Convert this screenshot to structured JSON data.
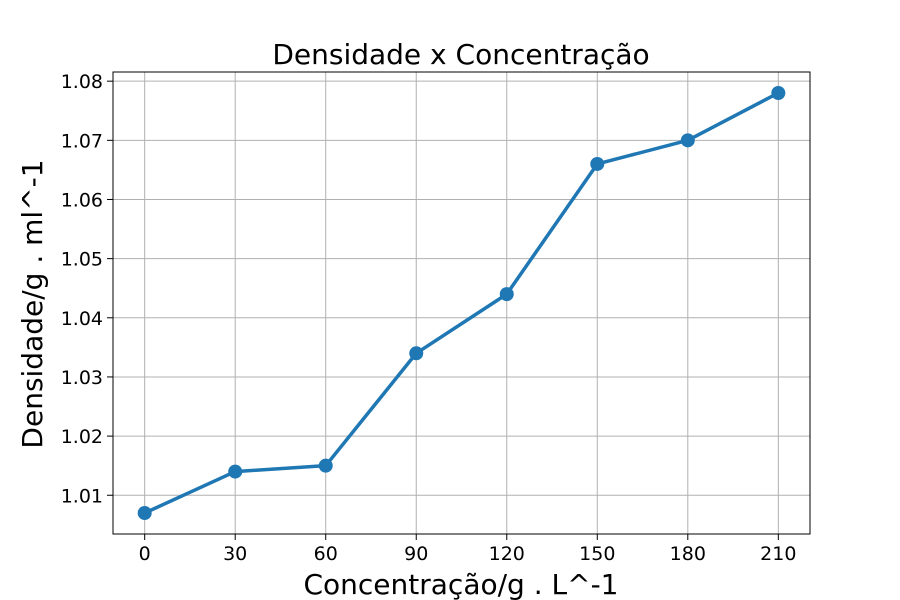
{
  "chart_data": {
    "type": "line",
    "title": "Densidade x Concentração",
    "xlabel": "Concentração/g . L^-1",
    "ylabel": "Densidade/g . ml^-1",
    "x": [
      0,
      30,
      60,
      90,
      120,
      150,
      180,
      210
    ],
    "series": [
      {
        "values": [
          1.007,
          1.014,
          1.015,
          1.034,
          1.044,
          1.066,
          1.07,
          1.078
        ],
        "color": "#1f77b4",
        "marker": "circle"
      }
    ],
    "xticks": [
      "0",
      "30",
      "60",
      "90",
      "120",
      "150",
      "180",
      "210"
    ],
    "yticks": [
      "1.01",
      "1.02",
      "1.03",
      "1.04",
      "1.05",
      "1.06",
      "1.07",
      "1.08"
    ],
    "ytick_values": [
      1.01,
      1.02,
      1.03,
      1.04,
      1.05,
      1.06,
      1.07,
      1.08
    ],
    "xlim": [
      -10.5,
      220.5
    ],
    "ylim": [
      1.00345,
      1.08155
    ],
    "grid": true,
    "legend": "none"
  }
}
